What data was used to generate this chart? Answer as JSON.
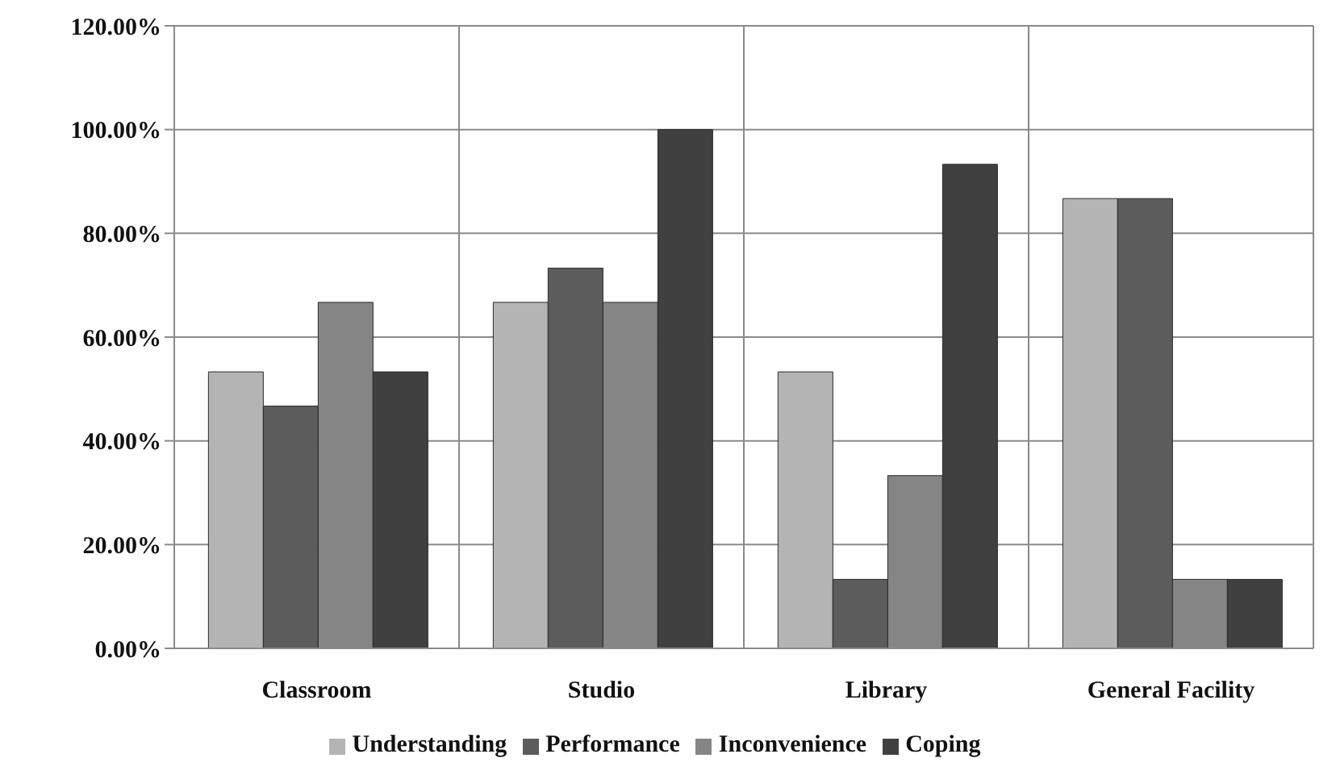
{
  "chart_data": {
    "type": "bar",
    "categories": [
      "Classroom",
      "Studio",
      "Library",
      "General Facility"
    ],
    "series": [
      {
        "name": "Understanding",
        "color": "#b4b4b4",
        "values": [
          53.3,
          66.7,
          53.3,
          86.7
        ]
      },
      {
        "name": "Performance",
        "color": "#5c5c5c",
        "values": [
          46.7,
          73.3,
          13.3,
          86.7
        ]
      },
      {
        "name": "Inconvenience",
        "color": "#858585",
        "values": [
          66.7,
          66.7,
          33.3,
          13.3
        ]
      },
      {
        "name": "Coping",
        "color": "#404040",
        "values": [
          53.3,
          100,
          93.3,
          13.3
        ]
      }
    ],
    "ylim": [
      0,
      120
    ],
    "yticks": [
      {
        "value": 0,
        "label": "0.00%"
      },
      {
        "value": 20,
        "label": "20.00%"
      },
      {
        "value": 40,
        "label": "40.00%"
      },
      {
        "value": 60,
        "label": "60.00%"
      },
      {
        "value": 80,
        "label": "80.00%"
      },
      {
        "value": 100,
        "label": "100.00%"
      },
      {
        "value": 120,
        "label": "120.00%"
      }
    ],
    "grid": true,
    "legend": "bottom"
  }
}
